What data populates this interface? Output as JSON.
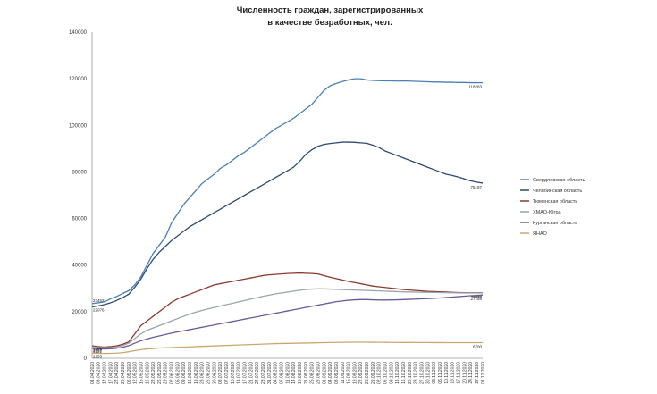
{
  "chart_data": {
    "type": "line",
    "title_lines": [
      "Численность граждан, зарегистрированных",
      "в качестве безработных, чел."
    ],
    "ylim": [
      0,
      140000
    ],
    "yticks": [
      0,
      20000,
      40000,
      60000,
      80000,
      100000,
      120000,
      140000
    ],
    "grid": false,
    "legend_position": "right",
    "categories": [
      "01.04.2020",
      "08.04.2020",
      "14.04.2020",
      "17.04.2020",
      "22.04.2020",
      "28.04.2020",
      "06.05.2020",
      "12.05.2020",
      "15.05.2020",
      "19.05.2020",
      "22.05.2020",
      "26.05.2020",
      "29.05.2020",
      "02.06.2020",
      "05.06.2020",
      "09.06.2020",
      "16.06.2020",
      "19.06.2020",
      "23.06.2020",
      "26.06.2020",
      "30.06.2020",
      "03.07.2020",
      "07.07.2020",
      "10.07.2020",
      "14.07.2020",
      "17.07.2020",
      "21.07.2020",
      "24.07.2020",
      "28.07.2020",
      "31.07.2020",
      "04.08.2020",
      "07.08.2020",
      "11.08.2020",
      "14.08.2020",
      "18.08.2020",
      "21.08.2020",
      "25.08.2020",
      "28.08.2020",
      "01.09.2020",
      "04.09.2020",
      "08.09.2020",
      "11.09.2020",
      "15.09.2020",
      "18.09.2020",
      "22.09.2020",
      "25.09.2020",
      "29.09.2020",
      "02.10.2020",
      "06.10.2020",
      "09.10.2020",
      "13.10.2020",
      "16.10.2020",
      "20.10.2020",
      "23.10.2020",
      "27.10.2020",
      "30.10.2020",
      "03.11.2020",
      "06.11.2020",
      "10.11.2020",
      "13.11.2020",
      "17.11.2020",
      "20.11.2020",
      "24.11.2020",
      "27.11.2020",
      "01.12.2020"
    ],
    "x_tick_labels": [
      "01.04.2020",
      "08.04.2020",
      "14.04.2020",
      "17.04.2020",
      "22.04.2020",
      "28.04.2020",
      "06.05.2020",
      "12.05.2020",
      "15.05.2020",
      "19.05.2020",
      "22.05.2020",
      "26.05.2020",
      "29.05.2020",
      "02.06.2020",
      "05.06.2020",
      "09.06.2020",
      "16.06.2020",
      "19.06.2020",
      "23.06.2020",
      "26.06.2020",
      "30.06.2020",
      "03.07.2020",
      "07.07.2020",
      "10.07.2020",
      "14.07.2020",
      "17.07.2020",
      "21.07.2020",
      "24.07.2020",
      "28.07.2020",
      "31.07.2020",
      "04.08.2020",
      "07.08.2020",
      "11.08.2020",
      "14.08.2020",
      "18.08.2020",
      "21.08.2020",
      "25.08.2020",
      "28.08.2020",
      "01.09.2020",
      "04.09.2020",
      "08.09.2020",
      "11.09.2020",
      "15.09.2020",
      "18.09.2020",
      "22.09.2020",
      "25.09.2020",
      "29.09.2020",
      "02.10.2020",
      "06.10.2020",
      "09.10.2020",
      "13.10.2020",
      "16.10.2020",
      "20.10.2020",
      "23.10.2020",
      "27.10.2020",
      "30.10.2020",
      "03.11.2020",
      "06.11.2020",
      "10.11.2020",
      "13.11.2020",
      "17.11.2020",
      "20.11.2020",
      "24.11.2020",
      "27.11.2020",
      "01.12.2020"
    ],
    "series": [
      {
        "name": "Свердловская область",
        "color": "#4a7fb5",
        "start_label": "23453",
        "end_label": "118283",
        "values": [
          23453,
          23800,
          24200,
          25500,
          26500,
          27800,
          29000,
          31500,
          35000,
          40000,
          45000,
          48500,
          52000,
          58000,
          62000,
          66000,
          69000,
          72000,
          75000,
          77000,
          79000,
          81500,
          83000,
          85000,
          87000,
          88500,
          90500,
          92500,
          94500,
          96500,
          98500,
          100000,
          101500,
          103000,
          105000,
          107000,
          109000,
          112000,
          115000,
          117000,
          118000,
          118800,
          119500,
          120000,
          120000,
          119500,
          119300,
          119200,
          119100,
          119100,
          119000,
          119100,
          119000,
          118900,
          118800,
          118700,
          118600,
          118600,
          118500,
          118500,
          118400,
          118400,
          118300,
          118300,
          118283
        ]
      },
      {
        "name": "Челябинская область",
        "color": "#2e4a6e",
        "start_label": "22076",
        "end_label": "75197",
        "values": [
          22076,
          22500,
          23000,
          23800,
          24800,
          26000,
          27500,
          30500,
          34000,
          38500,
          42500,
          45500,
          48000,
          50500,
          52500,
          54500,
          56500,
          58000,
          59500,
          61000,
          62500,
          64000,
          65500,
          67000,
          68500,
          70000,
          71500,
          73000,
          74500,
          76000,
          77500,
          79000,
          80500,
          82000,
          84500,
          87500,
          89500,
          91000,
          91800,
          92200,
          92500,
          92800,
          92800,
          92700,
          92500,
          92300,
          91500,
          90500,
          89000,
          88000,
          87000,
          86000,
          85000,
          84000,
          83000,
          82000,
          81000,
          80000,
          79000,
          78500,
          77800,
          77000,
          76200,
          75600,
          75197
        ]
      },
      {
        "name": "Тюменская область",
        "color": "#8b3a2e",
        "start_label": "5366",
        "end_label": "28070",
        "values": [
          5366,
          5000,
          4800,
          5000,
          5300,
          6000,
          7000,
          10500,
          14000,
          16000,
          18000,
          20000,
          22000,
          24000,
          25500,
          26500,
          27500,
          28500,
          29500,
          30500,
          31500,
          32000,
          32500,
          33000,
          33500,
          34000,
          34500,
          35000,
          35500,
          35800,
          36000,
          36200,
          36400,
          36500,
          36600,
          36500,
          36400,
          36200,
          35500,
          34800,
          34200,
          33600,
          33000,
          32500,
          32000,
          31500,
          31000,
          30700,
          30400,
          30100,
          29800,
          29500,
          29300,
          29100,
          28900,
          28700,
          28600,
          28500,
          28400,
          28300,
          28200,
          28150,
          28100,
          28080,
          28070
        ]
      },
      {
        "name": "ХМАО-Югра",
        "color": "#9aa4ab",
        "start_label": "4657",
        "end_label": "27988",
        "values": [
          4657,
          4600,
          4550,
          4600,
          4900,
          5400,
          6500,
          8500,
          10500,
          12000,
          13000,
          14000,
          15000,
          16000,
          17000,
          18000,
          19000,
          19800,
          20500,
          21200,
          21800,
          22400,
          23000,
          23600,
          24200,
          24800,
          25400,
          26000,
          26600,
          27100,
          27600,
          28000,
          28400,
          28800,
          29200,
          29500,
          29700,
          29800,
          29800,
          29700,
          29600,
          29500,
          29400,
          29300,
          29200,
          29100,
          29000,
          28900,
          28800,
          28700,
          28600,
          28500,
          28450,
          28400,
          28350,
          28300,
          28250,
          28200,
          28150,
          28100,
          28060,
          28030,
          28010,
          27995,
          27988
        ]
      },
      {
        "name": "Курганская область",
        "color": "#6a5a9a",
        "start_label": "4222",
        "end_label": "27158",
        "values": [
          4222,
          4100,
          4000,
          4100,
          4300,
          4700,
          5400,
          6500,
          7500,
          8300,
          9000,
          9600,
          10200,
          10800,
          11300,
          11800,
          12300,
          12800,
          13300,
          13800,
          14300,
          14800,
          15300,
          15800,
          16300,
          16800,
          17300,
          17800,
          18300,
          18800,
          19300,
          19800,
          20300,
          20800,
          21300,
          21800,
          22300,
          22800,
          23300,
          23800,
          24300,
          24600,
          24900,
          25100,
          25200,
          25200,
          25100,
          25000,
          25000,
          25050,
          25100,
          25200,
          25300,
          25400,
          25500,
          25600,
          25750,
          25900,
          26050,
          26250,
          26450,
          26650,
          26850,
          27000,
          27158
        ]
      },
      {
        "name": "ЯНАО",
        "color": "#c8a870",
        "start_label": "2155",
        "end_label": "6700",
        "values": [
          2155,
          2100,
          2050,
          2100,
          2200,
          2400,
          2800,
          3300,
          3700,
          4000,
          4200,
          4400,
          4500,
          4600,
          4700,
          4800,
          4900,
          5000,
          5100,
          5200,
          5300,
          5400,
          5500,
          5600,
          5700,
          5800,
          5900,
          6000,
          6100,
          6200,
          6300,
          6350,
          6400,
          6450,
          6500,
          6550,
          6600,
          6650,
          6700,
          6750,
          6800,
          6850,
          6900,
          6900,
          6900,
          6900,
          6880,
          6860,
          6840,
          6820,
          6800,
          6790,
          6780,
          6770,
          6760,
          6750,
          6740,
          6730,
          6720,
          6715,
          6710,
          6705,
          6702,
          6701,
          6700
        ]
      }
    ]
  }
}
